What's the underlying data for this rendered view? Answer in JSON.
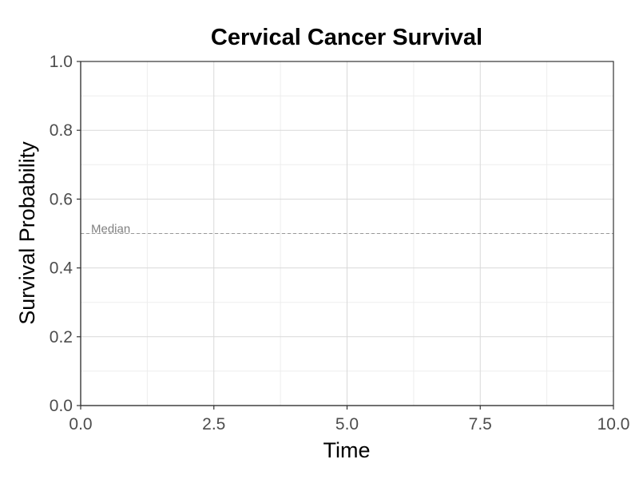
{
  "chart_data": {
    "type": "line",
    "title": "Cervical Cancer Survival",
    "xlabel": "Time",
    "ylabel": "Survival Probability",
    "xlim": [
      0,
      10
    ],
    "ylim": [
      0,
      1
    ],
    "x_ticks": [
      0,
      2.5,
      5,
      7.5,
      10
    ],
    "x_tick_labels": [
      "0.0",
      "2.5",
      "5.0",
      "7.5",
      "10.0"
    ],
    "y_ticks": [
      0,
      0.2,
      0.4,
      0.6,
      0.8,
      1
    ],
    "y_tick_labels": [
      "0.0",
      "0.2",
      "0.4",
      "0.6",
      "0.8",
      "1.0"
    ],
    "x_minor_ticks": [
      1.25,
      3.75,
      6.25,
      8.75
    ],
    "y_minor_ticks": [
      0.1,
      0.3,
      0.5,
      0.7,
      0.9
    ],
    "grid": true,
    "series": [],
    "reference_lines": [
      {
        "orientation": "horizontal",
        "y": 0.5,
        "label": "Median",
        "style": "dashed",
        "color": "#999999"
      }
    ],
    "colors": {
      "background": "#ffffff",
      "grid_major": "#d9d9d9",
      "grid_minor": "#ededed",
      "axis_line": "#333333",
      "panel_border": "#333333",
      "tick_label": "#4d4d4d",
      "title": "#000000",
      "annotation": "#808080"
    }
  }
}
